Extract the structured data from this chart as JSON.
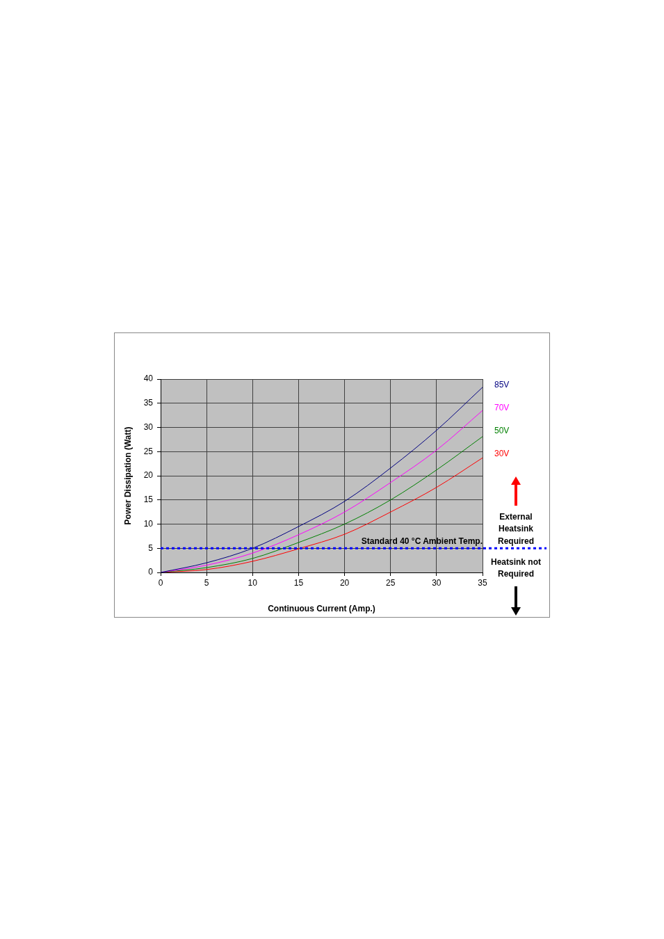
{
  "chart_data": {
    "type": "line",
    "xlabel": "Continuous Current (Amp.)",
    "ylabel": "Power Dissipation (Watt)",
    "x": [
      0,
      5,
      10,
      15,
      20,
      25,
      30,
      35
    ],
    "series": [
      {
        "name": "85V",
        "color": "#000080",
        "values": [
          0,
          2.0,
          5.0,
          9.5,
          14.7,
          21.6,
          29.4,
          38.3
        ]
      },
      {
        "name": "70V",
        "color": "#ff00ff",
        "values": [
          0,
          1.5,
          4.0,
          7.8,
          12.5,
          18.6,
          25.3,
          33.5
        ]
      },
      {
        "name": "50V",
        "color": "#008000",
        "values": [
          0,
          1.0,
          2.9,
          6.2,
          10.0,
          15.0,
          21.2,
          28.1
        ]
      },
      {
        "name": "30V",
        "color": "#ff0000",
        "values": [
          0,
          0.6,
          2.3,
          4.9,
          7.9,
          12.5,
          17.6,
          23.7
        ]
      }
    ],
    "xlim": [
      0,
      35
    ],
    "xticks": [
      0,
      5,
      10,
      15,
      20,
      25,
      30,
      35
    ],
    "ylim": [
      0,
      40
    ],
    "yticks": [
      0,
      5,
      10,
      15,
      20,
      25,
      30,
      35,
      40
    ],
    "grid": true,
    "legend": false,
    "marker": "none",
    "line_style": "solid",
    "ref_lines": [
      {
        "axis": "y",
        "value": 5,
        "label": "Standard 40 °C Ambient Temp.",
        "color": "#0000ff",
        "line_style": "dotted"
      }
    ],
    "annotations": [
      "External Heatsink Required",
      "Heatsink not Required"
    ]
  }
}
